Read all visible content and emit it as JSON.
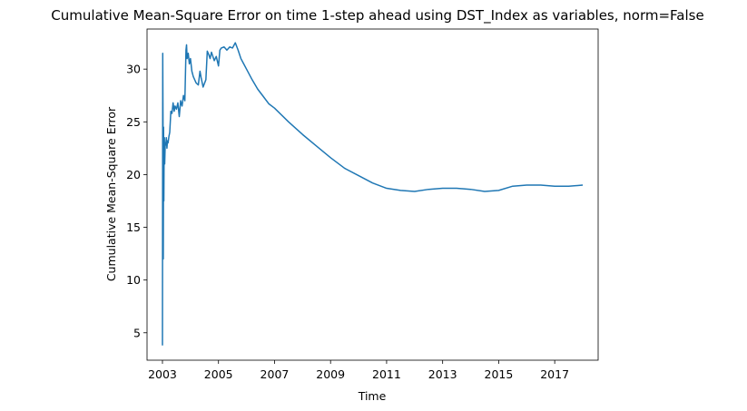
{
  "chart_data": {
    "type": "line",
    "title": "Cumulative Mean-Square Error on time 1-step ahead using DST_Index as variables, norm=False",
    "xlabel": "Time",
    "ylabel": "Cumulative Mean-Square Error",
    "xlim": [
      2002.45,
      2018.55
    ],
    "ylim": [
      2.4,
      33.8
    ],
    "xticks": [
      "2003",
      "2005",
      "2007",
      "2009",
      "2011",
      "2013",
      "2015",
      "2017"
    ],
    "yticks": [
      5,
      10,
      15,
      20,
      25,
      30
    ],
    "grid": false,
    "line_color": "#1f77b4",
    "series": [
      {
        "x": [
          2003.0,
          2003.01,
          2003.02,
          2003.03,
          2003.04,
          2003.05,
          2003.06,
          2003.07,
          2003.08,
          2003.1,
          2003.12,
          2003.14,
          2003.16,
          2003.18,
          2003.2,
          2003.23,
          2003.26,
          2003.3,
          2003.34,
          2003.38,
          2003.42,
          2003.45,
          2003.5,
          2003.55,
          2003.6,
          2003.65,
          2003.7,
          2003.75,
          2003.8,
          2003.84,
          2003.86,
          2003.88,
          2003.92,
          2003.96,
          2004.0,
          2004.05,
          2004.1,
          2004.2,
          2004.28,
          2004.34,
          2004.38,
          2004.45,
          2004.55,
          2004.6,
          2004.65,
          2004.7,
          2004.75,
          2004.85,
          2004.92,
          2005.0,
          2005.05,
          2005.1,
          2005.2,
          2005.3,
          2005.4,
          2005.5,
          2005.6,
          2005.7,
          2005.8,
          2005.9,
          2006.0,
          2006.2,
          2006.4,
          2006.6,
          2006.8,
          2007.0,
          2007.5,
          2008.0,
          2008.5,
          2009.0,
          2009.5,
          2010.0,
          2010.5,
          2011.0,
          2011.5,
          2012.0,
          2012.5,
          2013.0,
          2013.5,
          2014.0,
          2014.5,
          2015.0,
          2015.5,
          2016.0,
          2016.5,
          2017.0,
          2017.5,
          2018.0
        ],
        "values": [
          3.8,
          31.5,
          25.0,
          12.0,
          24.5,
          17.5,
          22.5,
          23.5,
          21.0,
          23.0,
          22.8,
          23.5,
          22.5,
          23.2,
          23.0,
          23.6,
          24.0,
          26.0,
          25.8,
          26.8,
          26.0,
          26.5,
          26.2,
          26.8,
          25.5,
          27.0,
          26.5,
          27.5,
          27.0,
          31.8,
          32.3,
          31.0,
          31.5,
          30.5,
          31.0,
          29.8,
          29.3,
          28.7,
          28.5,
          29.8,
          29.2,
          28.3,
          29.0,
          31.7,
          31.4,
          31.0,
          31.6,
          30.8,
          31.2,
          30.3,
          31.8,
          32.0,
          32.1,
          31.8,
          32.1,
          32.0,
          32.5,
          31.8,
          31.0,
          30.5,
          30.0,
          29.0,
          28.1,
          27.4,
          26.7,
          26.3,
          25.0,
          23.8,
          22.7,
          21.6,
          20.6,
          19.9,
          19.2,
          18.7,
          18.5,
          18.4,
          18.6,
          18.7,
          18.7,
          18.6,
          18.4,
          18.5,
          18.9,
          19.0,
          19.0,
          18.9,
          18.9,
          19.0
        ]
      }
    ]
  }
}
